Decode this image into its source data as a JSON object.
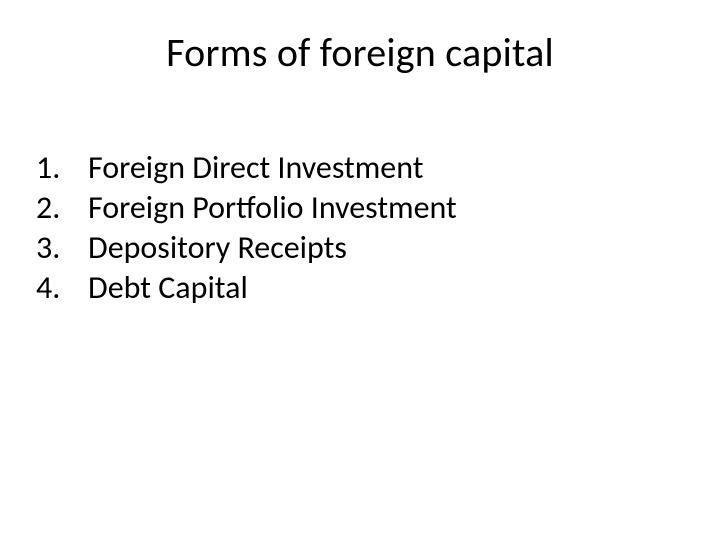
{
  "title": "Forms of foreign capital",
  "items": [
    {
      "n": "1.",
      "label": "Foreign Direct Investment"
    },
    {
      "n": "2.",
      "label": "Foreign Portfolio Investment"
    },
    {
      "n": "3.",
      "label": "Depository Receipts"
    },
    {
      "n": "4.",
      "label": "Debt Capital"
    }
  ],
  "style": {
    "background_color": "#ffffff",
    "text_color": "#000000",
    "title_fontsize": 40,
    "body_fontsize": 32,
    "font_family": "Calibri"
  }
}
